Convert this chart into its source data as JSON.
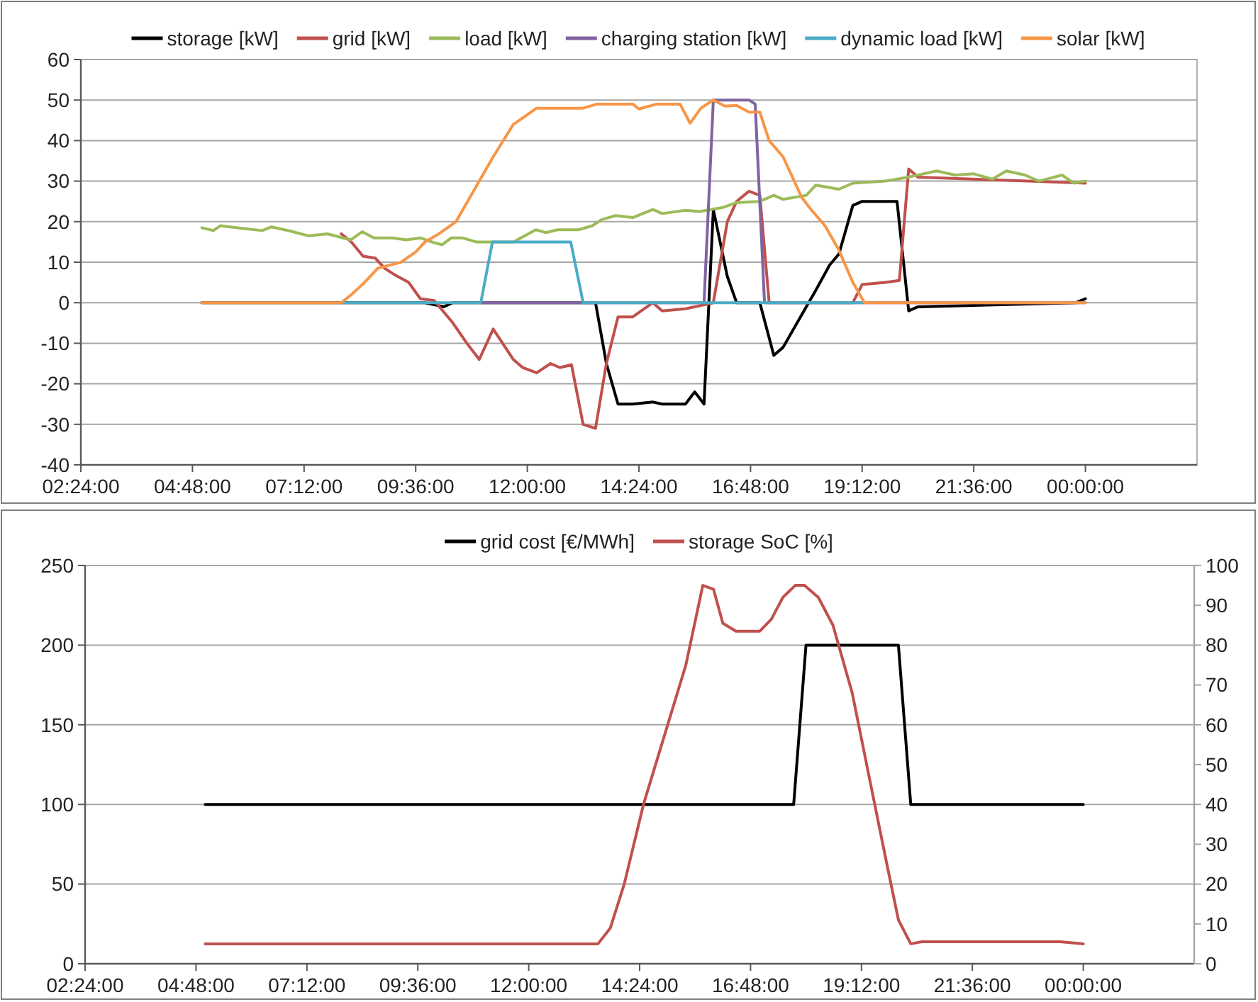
{
  "chart_data": [
    {
      "type": "line",
      "xlim": [
        "2000-01-01T02:24",
        "2000-01-02T02:24"
      ],
      "xticks": [
        {
          "value": "2000-01-01T02:24",
          "label": "02:24:00"
        },
        {
          "value": "2000-01-01T04:48",
          "label": "04:48:00"
        },
        {
          "value": "2000-01-01T07:12",
          "label": "07:12:00"
        },
        {
          "value": "2000-01-01T09:36",
          "label": "09:36:00"
        },
        {
          "value": "2000-01-01T12:00",
          "label": "12:00:00"
        },
        {
          "value": "2000-01-01T14:24",
          "label": "14:24:00"
        },
        {
          "value": "2000-01-01T16:48",
          "label": "16:48:00"
        },
        {
          "value": "2000-01-01T19:12",
          "label": "19:12:00"
        },
        {
          "value": "2000-01-01T21:36",
          "label": "21:36:00"
        },
        {
          "value": "2000-01-02T00:00",
          "label": "00:00:00"
        }
      ],
      "ylim": [
        -40,
        60
      ],
      "yticks": [
        -40,
        -30,
        -20,
        -10,
        0,
        10,
        20,
        30,
        40,
        50,
        60
      ],
      "grid": "y",
      "legend": "top",
      "series": [
        {
          "name": "storage [kW]",
          "color": "#000000",
          "x": [
            "2000-01-01T05:00",
            "2000-01-01T09:48",
            "2000-01-01T10:12",
            "2000-01-01T10:24",
            "2000-01-01T13:28",
            "2000-01-01T13:42",
            "2000-01-01T13:57",
            "2000-01-01T14:16",
            "2000-01-01T14:42",
            "2000-01-01T14:54",
            "2000-01-01T15:24",
            "2000-01-01T15:36",
            "2000-01-01T15:48",
            "2000-01-01T16:00",
            "2000-01-01T16:18",
            "2000-01-01T16:30",
            "2000-01-01T17:00",
            "2000-01-01T17:18",
            "2000-01-01T17:30",
            "2000-01-01T17:54",
            "2000-01-01T18:12",
            "2000-01-01T18:30",
            "2000-01-01T18:42",
            "2000-01-01T19:00",
            "2000-01-01T19:12",
            "2000-01-01T19:57",
            "2000-01-01T20:12",
            "2000-01-01T20:24",
            "2000-01-01T23:48",
            "2000-01-02T00:00"
          ],
          "values": [
            0,
            0,
            -1,
            0,
            0,
            -15,
            -25,
            -25,
            -24.5,
            -25,
            -25,
            -22,
            -25,
            23,
            6.5,
            0,
            0,
            -13,
            -11,
            -3,
            3,
            9.3,
            12,
            24,
            25,
            25,
            -2,
            -1,
            0,
            1
          ]
        },
        {
          "name": "grid [kW]",
          "color": "#c0504d",
          "x": [
            "2000-01-01T08:00",
            "2000-01-01T08:13",
            "2000-01-01T08:28",
            "2000-01-01T08:44",
            "2000-01-01T08:56",
            "2000-01-01T09:08",
            "2000-01-01T09:27",
            "2000-01-01T09:42",
            "2000-01-01T10:00",
            "2000-01-01T10:24",
            "2000-01-01T10:42",
            "2000-01-01T10:58",
            "2000-01-01T11:16",
            "2000-01-01T11:42",
            "2000-01-01T11:54",
            "2000-01-01T12:12",
            "2000-01-01T12:30",
            "2000-01-01T12:42",
            "2000-01-01T12:57",
            "2000-01-01T13:12",
            "2000-01-01T13:28",
            "2000-01-01T13:42",
            "2000-01-01T13:57",
            "2000-01-01T14:16",
            "2000-01-01T14:42",
            "2000-01-01T14:54",
            "2000-01-01T15:24",
            "2000-01-01T16:00",
            "2000-01-01T16:18",
            "2000-01-01T16:30",
            "2000-01-01T16:46",
            "2000-01-01T17:00",
            "2000-01-01T17:12",
            "2000-01-01T19:00",
            "2000-01-01T19:12",
            "2000-01-01T19:42",
            "2000-01-01T20:00",
            "2000-01-01T20:12",
            "2000-01-01T20:24",
            "2000-01-02T00:00"
          ],
          "values": [
            17,
            15,
            11.5,
            11,
            8.5,
            7,
            5,
            1,
            0.5,
            -5,
            -10,
            -14,
            -6.5,
            -14,
            -16,
            -17.3,
            -15,
            -16,
            -15.3,
            -30,
            -31,
            -15,
            -3.5,
            -3.5,
            0,
            -2,
            -1.5,
            0,
            20,
            25,
            27.5,
            26.5,
            0,
            0,
            4.5,
            5,
            5.5,
            33,
            31,
            29.5
          ]
        },
        {
          "name": "load [kW]",
          "color": "#9bbb59",
          "x": [
            "2000-01-01T05:00",
            "2000-01-01T05:15",
            "2000-01-01T05:24",
            "2000-01-01T05:54",
            "2000-01-01T06:18",
            "2000-01-01T06:30",
            "2000-01-01T06:54",
            "2000-01-01T07:18",
            "2000-01-01T07:42",
            "2000-01-01T08:12",
            "2000-01-01T08:27",
            "2000-01-01T08:42",
            "2000-01-01T09:06",
            "2000-01-01T09:24",
            "2000-01-01T09:42",
            "2000-01-01T10:00",
            "2000-01-01T10:10",
            "2000-01-01T10:22",
            "2000-01-01T10:36",
            "2000-01-01T10:54",
            "2000-01-01T11:42",
            "2000-01-01T12:11",
            "2000-01-01T12:24",
            "2000-01-01T12:39",
            "2000-01-01T13:06",
            "2000-01-01T13:24",
            "2000-01-01T13:36",
            "2000-01-01T13:54",
            "2000-01-01T14:16",
            "2000-01-01T14:42",
            "2000-01-01T14:54",
            "2000-01-01T15:24",
            "2000-01-01T15:42",
            "2000-01-01T16:12",
            "2000-01-01T16:30",
            "2000-01-01T17:00",
            "2000-01-01T17:18",
            "2000-01-01T17:30",
            "2000-01-01T18:00",
            "2000-01-01T18:12",
            "2000-01-01T18:42",
            "2000-01-01T19:00",
            "2000-01-01T19:42",
            "2000-01-01T20:12",
            "2000-01-01T20:48",
            "2000-01-01T21:12",
            "2000-01-01T21:36",
            "2000-01-01T22:00",
            "2000-01-01T22:18",
            "2000-01-01T22:42",
            "2000-01-01T23:00",
            "2000-01-01T23:30",
            "2000-01-01T23:45",
            "2000-01-02T00:00"
          ],
          "values": [
            18.5,
            17.8,
            19,
            18.3,
            17.8,
            18.7,
            17.7,
            16.5,
            17,
            15.5,
            17.5,
            16,
            16,
            15.5,
            16,
            14.8,
            14.3,
            16,
            16,
            15,
            15,
            18,
            17.3,
            18,
            18,
            19,
            20.5,
            21.5,
            21,
            23,
            22,
            22.8,
            22.5,
            23.5,
            24.7,
            25,
            26.5,
            25.5,
            26.5,
            29,
            28,
            29.5,
            30,
            31,
            32.5,
            31.5,
            31.8,
            30.5,
            32.5,
            31.5,
            30,
            31.5,
            29.5,
            30
          ]
        },
        {
          "name": "charging station [kW]",
          "color": "#8064a2",
          "x": [
            "2000-01-01T11:00",
            "2000-01-01T15:48",
            "2000-01-01T16:00",
            "2000-01-01T16:46",
            "2000-01-01T16:54",
            "2000-01-01T17:06",
            "2000-01-02T00:00"
          ],
          "values": [
            0,
            0,
            50,
            50,
            49,
            0,
            0
          ]
        },
        {
          "name": "dynamic load [kW]",
          "color": "#4bacc6",
          "x": [
            "2000-01-01T08:00",
            "2000-01-01T11:00",
            "2000-01-01T11:15",
            "2000-01-01T12:56",
            "2000-01-01T13:12",
            "2000-01-01T19:12"
          ],
          "values": [
            0,
            0,
            15,
            15,
            0,
            0
          ]
        },
        {
          "name": "solar [kW]",
          "color": "#f79646",
          "x": [
            "2000-01-01T05:00",
            "2000-01-01T08:00",
            "2000-01-01T08:13",
            "2000-01-01T08:30",
            "2000-01-01T08:47",
            "2000-01-01T09:17",
            "2000-01-01T09:36",
            "2000-01-01T09:48",
            "2000-01-01T10:06",
            "2000-01-01T10:28",
            "2000-01-01T10:46",
            "2000-01-01T10:58",
            "2000-01-01T11:16",
            "2000-01-01T11:42",
            "2000-01-01T12:12",
            "2000-01-01T13:12",
            "2000-01-01T13:30",
            "2000-01-01T14:16",
            "2000-01-01T14:24",
            "2000-01-01T14:47",
            "2000-01-01T15:17",
            "2000-01-01T15:30",
            "2000-01-01T15:44",
            "2000-01-01T16:00",
            "2000-01-01T16:15",
            "2000-01-01T16:30",
            "2000-01-01T16:46",
            "2000-01-01T17:00",
            "2000-01-01T17:12",
            "2000-01-01T17:30",
            "2000-01-01T17:54",
            "2000-01-01T18:06",
            "2000-01-01T18:24",
            "2000-01-01T18:42",
            "2000-01-01T19:00",
            "2000-01-01T19:15",
            "2000-01-02T00:00"
          ],
          "values": [
            0,
            0,
            2,
            5,
            8.5,
            10,
            12.5,
            15,
            17,
            20,
            26,
            30,
            36,
            44,
            48,
            48,
            49,
            49,
            47.8,
            49,
            49,
            44.3,
            48,
            50,
            48.5,
            48.7,
            47,
            47,
            40,
            36,
            26,
            23,
            19,
            13,
            5,
            0,
            0
          ]
        }
      ]
    },
    {
      "type": "line",
      "xlim": [
        "2000-01-01T02:24",
        "2000-01-02T02:24"
      ],
      "xticks": [
        {
          "value": "2000-01-01T02:24",
          "label": "02:24:00"
        },
        {
          "value": "2000-01-01T04:48",
          "label": "04:48:00"
        },
        {
          "value": "2000-01-01T07:12",
          "label": "07:12:00"
        },
        {
          "value": "2000-01-01T09:36",
          "label": "09:36:00"
        },
        {
          "value": "2000-01-01T12:00",
          "label": "12:00:00"
        },
        {
          "value": "2000-01-01T14:24",
          "label": "14:24:00"
        },
        {
          "value": "2000-01-01T16:48",
          "label": "16:48:00"
        },
        {
          "value": "2000-01-01T19:12",
          "label": "19:12:00"
        },
        {
          "value": "2000-01-01T21:36",
          "label": "21:36:00"
        },
        {
          "value": "2000-01-02T00:00",
          "label": "00:00:00"
        }
      ],
      "ylim": [
        0,
        250
      ],
      "yticks": [
        0,
        50,
        100,
        150,
        200,
        250
      ],
      "y2lim": [
        0,
        100
      ],
      "y2ticks": [
        0,
        10,
        20,
        30,
        40,
        50,
        60,
        70,
        80,
        90,
        100
      ],
      "grid": "y",
      "legend": "top",
      "series": [
        {
          "name": "grid cost [€/MWh]",
          "color": "#000000",
          "x": [
            "2000-01-01T05:00",
            "2000-01-01T17:44",
            "2000-01-01T18:00",
            "2000-01-01T20:00",
            "2000-01-01T20:16",
            "2000-01-02T00:00"
          ],
          "values": [
            100,
            100,
            200,
            200,
            100,
            100
          ]
        },
        {
          "name": "storage SoC [%]",
          "color": "#c0504d",
          "axis": "y2",
          "x": [
            "2000-01-01T05:00",
            "2000-01-01T13:30",
            "2000-01-01T13:46",
            "2000-01-01T14:04",
            "2000-01-01T14:29",
            "2000-01-01T15:24",
            "2000-01-01T15:46",
            "2000-01-01T16:00",
            "2000-01-01T16:12",
            "2000-01-01T16:29",
            "2000-01-01T17:00",
            "2000-01-01T17:15",
            "2000-01-01T17:30",
            "2000-01-01T17:46",
            "2000-01-01T17:58",
            "2000-01-01T18:16",
            "2000-01-01T18:35",
            "2000-01-01T19:00",
            "2000-01-01T19:24",
            "2000-01-01T19:45",
            "2000-01-01T20:00",
            "2000-01-01T20:16",
            "2000-01-01T20:30",
            "2000-01-01T23:30",
            "2000-01-02T00:00"
          ],
          "values": [
            5,
            5,
            9,
            20,
            40,
            75,
            95,
            94,
            85.5,
            83.5,
            83.5,
            86.5,
            92,
            95,
            95,
            92,
            85,
            68,
            45,
            25,
            11,
            5,
            5.5,
            5.5,
            5
          ]
        }
      ]
    }
  ]
}
